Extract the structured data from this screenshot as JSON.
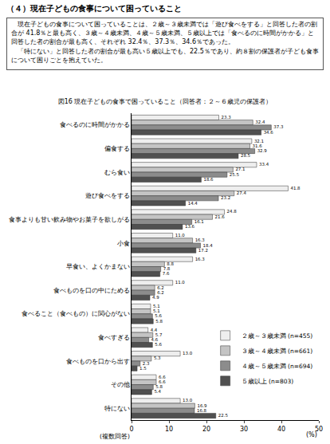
{
  "header": {
    "title": "（４）現在子どもの食事について困っていること",
    "text": [
      "現在子どもの食事について困っていることは、２歳～３歳未満では「遊び食べをする」と回答した者の割合が 41.8％と最も高く、３歳～４歳未満、４歳～５歳未満、５歳以上では「食べるのに時間がかかる」と回答した者の割合が最も高く、それぞれ 32.4％、37.3％、34.6％であった。",
      "「特にない」と回答した者の割合が最も高い５歳以上でも、22.5％であり、約８割の保護者が子ども食事について困りごとを抱えていた。"
    ]
  },
  "chart_data": {
    "type": "bar",
    "title": "図16 現在子どもの食事で困っていること（回答者：２～６歳児の保護者）",
    "orientation": "horizontal",
    "xlabel": "(%)",
    "annotations": [
      "(複数回答)"
    ],
    "categories": [
      "食べるのに時間がかかる",
      "偏食する",
      "むら食い",
      "遊び食べをする",
      "食事よりも甘い飲み物やお菓子を欲しがる",
      "小食",
      "早食い、よくかまない",
      "食べものを口の中にためる",
      "食べること（食べもの）に関心がない",
      "食べすぎる",
      "食べものを口から出す",
      "その他",
      "特にない"
    ],
    "series": [
      {
        "name": "２歳～３歳未満 (n=455)",
        "color": "#eeeeee",
        "values": [
          23.3,
          32.1,
          33.4,
          41.8,
          24.8,
          11.0,
          16.3,
          11.0,
          5.1,
          4.4,
          13.0,
          6.6,
          13.0
        ],
        "value_labels": [
          "23.3",
          "32.1",
          "33.4",
          "41.8",
          "24.8",
          "11.0",
          "16.3",
          "11.0",
          "5.1",
          "4.4",
          "13.0",
          "6.6",
          "13.0"
        ]
      },
      {
        "name": "３歳～４歳未満 (n=661)",
        "color": "#c4c4c4",
        "values": [
          32.4,
          31.6,
          27.1,
          27.4,
          21.6,
          16.3,
          8.8,
          6.2,
          5.1,
          5.7,
          5.3,
          6.6,
          16.9
        ],
        "value_labels": [
          "32.4",
          "31.6",
          "27.1",
          "27.4",
          "21.6",
          "16.3",
          "8.8",
          "6.2",
          "5.1",
          "5.7",
          "5.3",
          "6.6",
          "16.9"
        ]
      },
      {
        "name": "４歳～５歳未満 (n=694)",
        "color": "#8c8c8c",
        "values": [
          37.3,
          32.9,
          25.5,
          23.2,
          16.1,
          18.4,
          7.8,
          6.2,
          5.6,
          4.6,
          2.3,
          5.8,
          16.8
        ],
        "value_labels": [
          "37.3",
          "32.9",
          "25.5",
          "23.2",
          "16.1",
          "18.4",
          "7.8",
          "6.2",
          "5.6",
          "4.6",
          "2.3",
          "5.8",
          "16.8"
        ]
      },
      {
        "name": "５歳以上 (n=803)",
        "color": "#505050",
        "values": [
          34.6,
          28.5,
          18.6,
          14.4,
          13.6,
          17.2,
          7.6,
          4.9,
          5.8,
          5.6,
          1.5,
          5.4,
          22.5
        ],
        "value_labels": [
          "34.6",
          "28.5",
          "18.6",
          "14.4",
          "13.6",
          "17.2",
          "7.6",
          "4.9",
          "5.8",
          "5.6",
          "1.5",
          "5.4",
          "22.5"
        ]
      }
    ],
    "xlim": [
      0,
      50
    ],
    "xticks": [
      0,
      10,
      20,
      30,
      40,
      50
    ],
    "grid": false,
    "data_labels": true,
    "legend": "bottom right"
  }
}
